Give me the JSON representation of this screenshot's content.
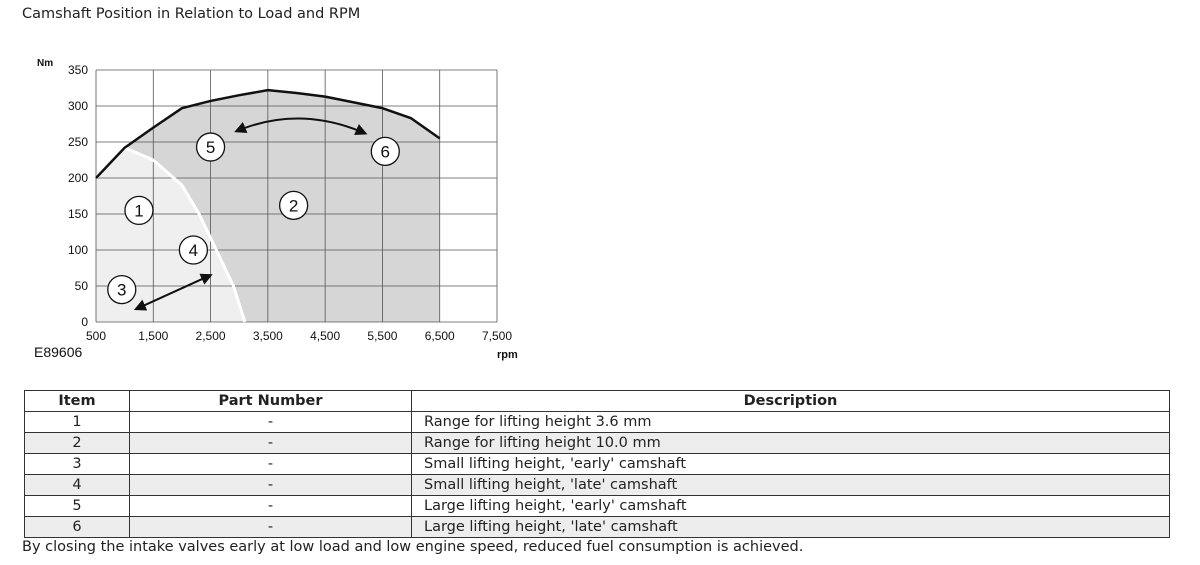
{
  "title": "Camshaft Position in Relation to Load and RPM",
  "figure_code": "E89606",
  "chart_data": {
    "type": "area",
    "ylabel": "Nm",
    "xlabel": "rpm",
    "xlim": [
      500,
      7500
    ],
    "ylim": [
      0,
      350
    ],
    "x_ticks": [
      "500",
      "1,500",
      "2,500",
      "3,500",
      "4,500",
      "5,500",
      "6,500",
      "7,500"
    ],
    "y_ticks": [
      "0",
      "50",
      "100",
      "150",
      "200",
      "250",
      "300",
      "350"
    ],
    "full_load_curve": {
      "x": [
        500,
        1000,
        1500,
        2000,
        2500,
        3000,
        3500,
        4000,
        4500,
        5000,
        5500,
        6000,
        6500
      ],
      "y": [
        200,
        242,
        270,
        297,
        307,
        315,
        322,
        318,
        313,
        305,
        297,
        283,
        255
      ]
    },
    "boundary_curve": {
      "x": [
        500,
        1000,
        1500,
        2000,
        2300,
        2600,
        2900,
        3100
      ],
      "y": [
        200,
        242,
        225,
        190,
        150,
        100,
        50,
        0
      ]
    },
    "markers": [
      {
        "label": "1",
        "x": 1250,
        "y": 155
      },
      {
        "label": "2",
        "x": 3950,
        "y": 162
      },
      {
        "label": "3",
        "x": 950,
        "y": 45
      },
      {
        "label": "4",
        "x": 2200,
        "y": 100
      },
      {
        "label": "5",
        "x": 2500,
        "y": 243
      },
      {
        "label": "6",
        "x": 5550,
        "y": 237
      }
    ],
    "arrows": [
      {
        "from": [
          1200,
          18
        ],
        "to": [
          2500,
          65
        ]
      },
      {
        "from": [
          2950,
          265
        ],
        "to": [
          5200,
          262
        ],
        "via": [
          4050,
          285
        ]
      }
    ]
  },
  "table": {
    "headers": [
      "Item",
      "Part Number",
      "Description"
    ],
    "rows": [
      {
        "item": "1",
        "part": "-",
        "desc": "Range for lifting height 3.6 mm"
      },
      {
        "item": "2",
        "part": "-",
        "desc": "Range for lifting height 10.0 mm"
      },
      {
        "item": "3",
        "part": "-",
        "desc": "Small lifting height, 'early' camshaft"
      },
      {
        "item": "4",
        "part": "-",
        "desc": "Small lifting height, 'late' camshaft"
      },
      {
        "item": "5",
        "part": "-",
        "desc": "Large lifting height, 'early' camshaft"
      },
      {
        "item": "6",
        "part": "-",
        "desc": "Large lifting height, 'late' camshaft"
      }
    ]
  },
  "note": "By closing the intake valves early at low load and low engine speed, reduced fuel consumption is achieved."
}
